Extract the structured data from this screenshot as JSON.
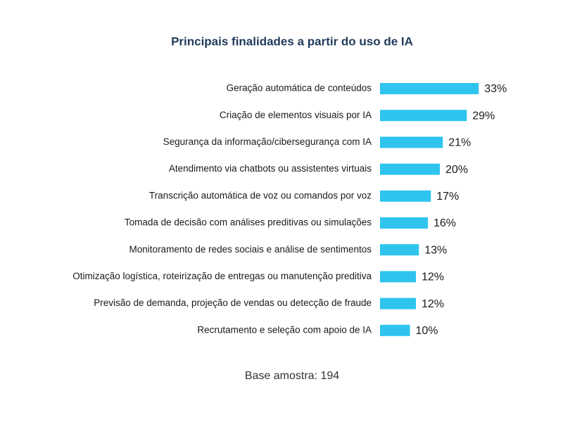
{
  "chart_data": {
    "type": "bar",
    "orientation": "horizontal",
    "title": "Principais finalidades a partir do uso de IA",
    "categories": [
      "Geração automática de conteúdos",
      "Criação de elementos visuais por IA",
      "Segurança da informação/cibersegurança com IA",
      "Atendimento via chatbots ou assistentes virtuais",
      "Transcrição automática de voz ou comandos por voz",
      "Tomada de decisão com análises preditivas ou simulações",
      "Monitoramento de redes sociais e análise de sentimentos",
      "Otimização logística, roteirização de entregas ou manutenção preditiva",
      "Previsão de demanda, projeção de vendas ou detecção de fraude",
      "Recrutamento e seleção com apoio de IA"
    ],
    "values": [
      33,
      29,
      21,
      20,
      17,
      16,
      13,
      12,
      12,
      10
    ],
    "value_labels": [
      "33%",
      "29%",
      "21%",
      "20%",
      "17%",
      "16%",
      "13%",
      "12%",
      "12%",
      "10%"
    ],
    "color": "#2ec4ee",
    "note": "Base amostra: 194"
  }
}
